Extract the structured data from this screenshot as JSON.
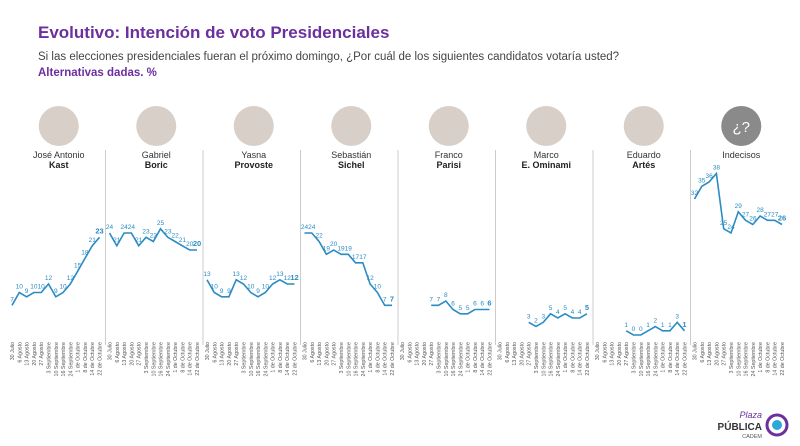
{
  "chart_data": {
    "type": "line",
    "title": "Evolutivo: Intención de voto Presidenciales",
    "subtitle": "Si las elecciones presidenciales fueran el próximo domingo, ¿Por cuál de los siguientes candidatos votaría usted?",
    "note": "Alternativas dadas. %",
    "color": "#2a8cc4",
    "ylim": [
      0,
      40
    ],
    "dates": [
      "30 Julio",
      "6 Agosto",
      "13 Agosto",
      "20 Agosto",
      "27 Agosto",
      "3 Septiembre",
      "10 Septiembre",
      "16 Septiembre",
      "24 Septiembre",
      "1 de Octubre",
      "8 de Octubre",
      "14 de Octubre",
      "22 de Octubre"
    ],
    "series": [
      {
        "first": "José Antonio",
        "name": "Kast",
        "values": [
          7,
          10,
          9,
          10,
          10,
          12,
          9,
          10,
          12,
          15,
          18,
          21,
          23
        ]
      },
      {
        "first": "Gabriel",
        "name": "Boric",
        "values": [
          24,
          21,
          24,
          24,
          21,
          23,
          22,
          25,
          23,
          22,
          21,
          20,
          20
        ]
      },
      {
        "first": "Yasna",
        "name": "Provoste",
        "values": [
          13,
          10,
          9,
          9,
          13,
          12,
          10,
          9,
          10,
          12,
          13,
          12,
          12
        ]
      },
      {
        "first": "Sebastián",
        "name": "Sichel",
        "values": [
          24,
          24,
          22,
          19,
          20,
          19,
          19,
          17,
          17,
          12,
          10,
          7,
          7
        ]
      },
      {
        "first": "Franco",
        "name": "Parisi",
        "values": [
          null,
          null,
          null,
          null,
          7,
          7,
          8,
          6,
          5,
          5,
          6,
          6,
          6
        ]
      },
      {
        "first": "Marco",
        "name": "E. Ominami",
        "values": [
          null,
          null,
          null,
          null,
          3,
          2,
          3,
          5,
          4,
          5,
          4,
          4,
          5
        ]
      },
      {
        "first": "Eduardo",
        "name": "Artés",
        "values": [
          null,
          null,
          null,
          null,
          1,
          0,
          0,
          1,
          2,
          1,
          1,
          3,
          1
        ]
      },
      {
        "name": "Indecisos",
        "icon": "¿?",
        "values": [
          32,
          35,
          36,
          38,
          25,
          24,
          29,
          27,
          26,
          28,
          27,
          27,
          26
        ]
      }
    ]
  },
  "logo": {
    "top": "Plaza",
    "main": "PÚBLICA",
    "sub": "CADEM"
  }
}
